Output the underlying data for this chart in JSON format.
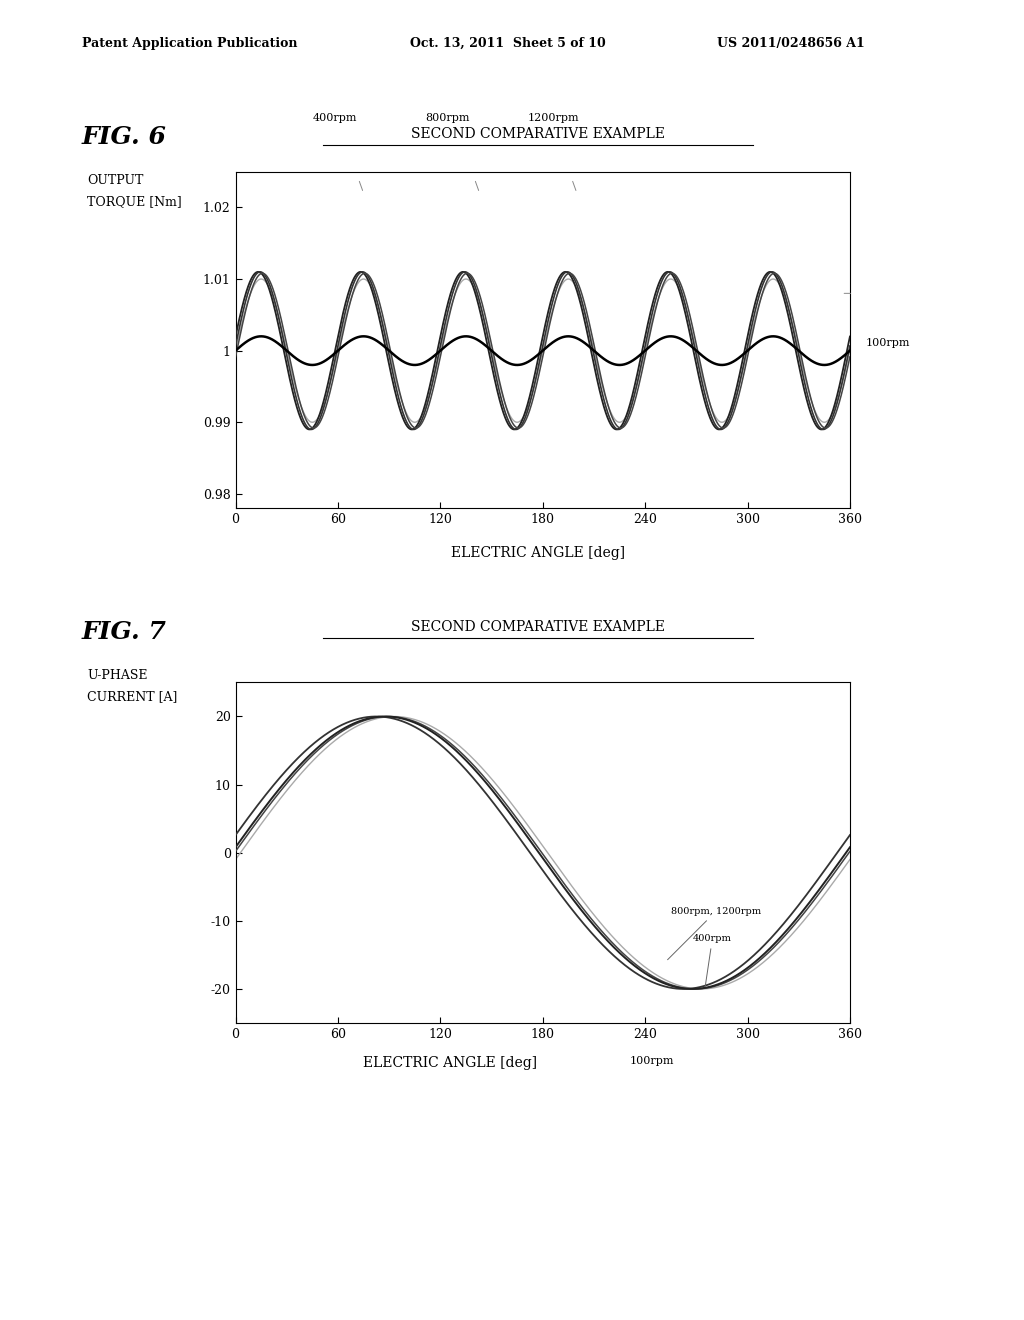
{
  "fig_width": 10.24,
  "fig_height": 13.2,
  "bg_color": "#ffffff",
  "header_left": "Patent Application Publication",
  "header_center": "Oct. 13, 2011  Sheet 5 of 10",
  "header_right": "US 2011/0248656 A1",
  "fig6_label": "FIG. 6",
  "fig6_title": "SECOND COMPARATIVE EXAMPLE",
  "fig6_ylabel_line1": "OUTPUT",
  "fig6_ylabel_line2": "TORQUE [Nm]",
  "fig6_xlabel": "ELECTRIC ANGLE [deg]",
  "fig6_ylim": [
    0.978,
    1.025
  ],
  "fig6_yticks": [
    0.98,
    0.99,
    1.0,
    1.01,
    1.02
  ],
  "fig6_ytick_labels": [
    "0.98",
    "0.99",
    "1",
    "1.01",
    "1.02"
  ],
  "fig6_xlim": [
    0,
    360
  ],
  "fig6_xticks": [
    0,
    60,
    120,
    180,
    240,
    300,
    360
  ],
  "fig6_annotation_400": "400rpm",
  "fig6_annotation_800": "800rpm",
  "fig6_annotation_1200": "1200rpm",
  "fig6_annotation_100": "100rpm",
  "fig7_label": "FIG. 7",
  "fig7_title": "SECOND COMPARATIVE EXAMPLE",
  "fig7_ylabel_line1": "U-PHASE",
  "fig7_ylabel_line2": "CURRENT [A]",
  "fig7_xlabel": "ELECTRIC ANGLE [deg]",
  "fig7_ylim": [
    -25,
    25
  ],
  "fig7_yticks": [
    -20,
    -10,
    0,
    10,
    20
  ],
  "fig7_ytick_labels": [
    "-20",
    "-10",
    "0",
    "10",
    "20"
  ],
  "fig7_xlim": [
    0,
    360
  ],
  "fig7_xticks": [
    0,
    60,
    120,
    180,
    240,
    300,
    360
  ],
  "fig7_annotation_800_1200": "800rpm, 1200rpm",
  "fig7_annotation_400": "400rpm",
  "fig7_annotation_100": "100rpm"
}
